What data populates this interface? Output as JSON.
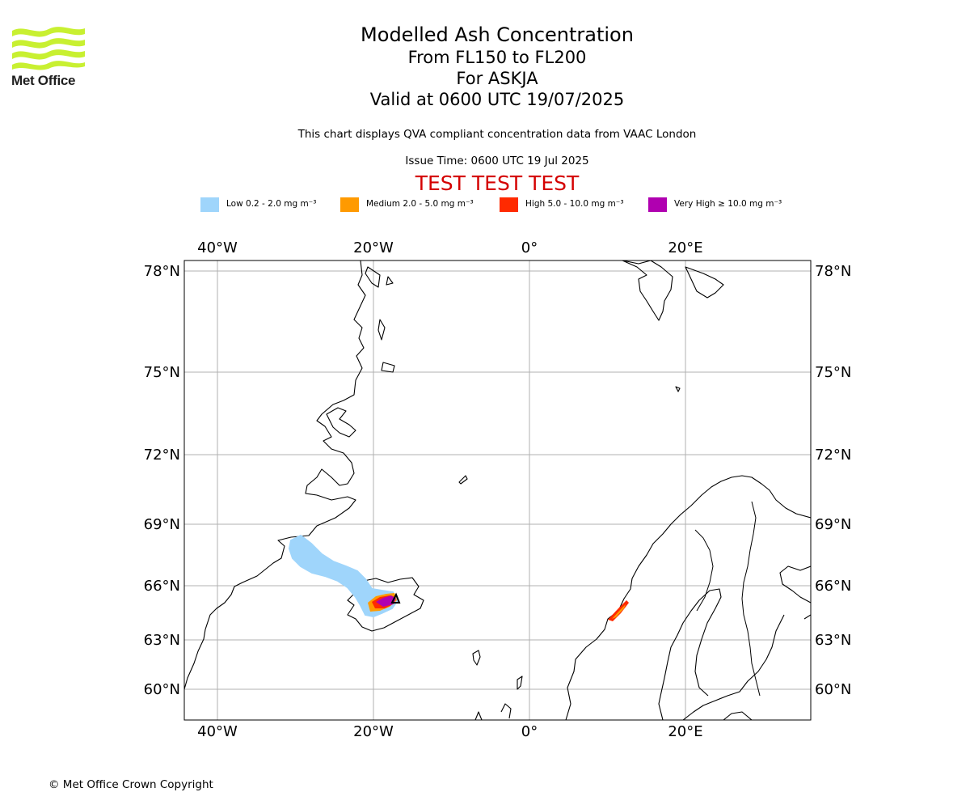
{
  "logo": {
    "text": "Met Office"
  },
  "titles": {
    "line1": "Modelled Ash Concentration",
    "line2": "From FL150 to FL200",
    "line3": "For ASKJA",
    "line4": "Valid at 0600 UTC 19/07/2025"
  },
  "subtitle": "This chart displays QVA compliant concentration data from VAAC London",
  "issue_time": "Issue Time: 0600 UTC 19 Jul 2025",
  "test_banner": "TEST TEST TEST",
  "legend": [
    {
      "label": "Low 0.2 - 2.0 mg m⁻³",
      "color": "#9fd5fb"
    },
    {
      "label": "Medium 2.0 - 5.0 mg m⁻³",
      "color": "#ff9a00"
    },
    {
      "label": "High 5.0 - 10.0 mg m⁻³",
      "color": "#ff2a00"
    },
    {
      "label": "Very High  ≥  10.0 mg m⁻³",
      "color": "#b000b0"
    }
  ],
  "map": {
    "lon_labels": [
      "40°W",
      "20°W",
      "0°",
      "20°E"
    ],
    "lat_labels": [
      "78°N",
      "75°N",
      "72°N",
      "69°N",
      "66°N",
      "63°N",
      "60°N"
    ],
    "lon_values": [
      -40,
      -20,
      0,
      20
    ],
    "lat_values": [
      78,
      75,
      72,
      69,
      66,
      63,
      60
    ],
    "extent": {
      "lon": [
        -44,
        36
      ],
      "lat": [
        58.5,
        78.3
      ]
    },
    "volcano": "ASKJA",
    "plume_levels": [
      "Low",
      "Medium",
      "High",
      "Very High"
    ]
  },
  "copyright": "© Met Office Crown Copyright"
}
